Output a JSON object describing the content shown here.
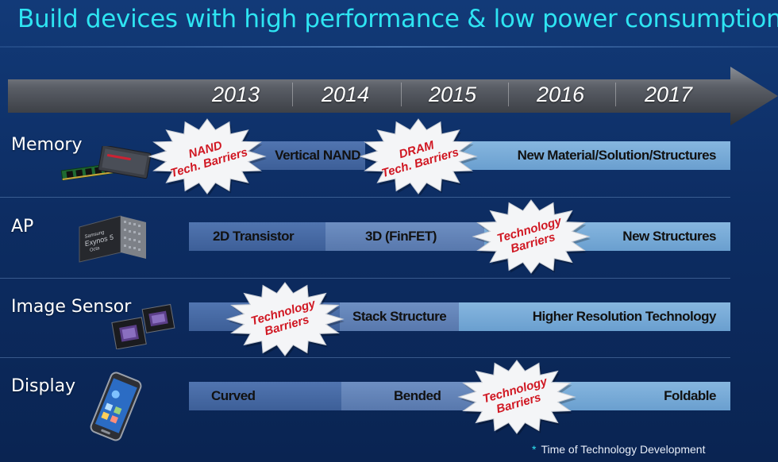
{
  "title": "Build devices with high performance & low power consumption",
  "timeline": {
    "years": [
      "2013",
      "2014",
      "2015",
      "2016",
      "2017"
    ]
  },
  "rows": {
    "memory": {
      "label": "Memory",
      "segments": [
        "Vertical NAND",
        "New Material/Solution/Structures"
      ],
      "barriers": [
        {
          "line1": "NAND",
          "line2": "Tech. Barriers"
        },
        {
          "line1": "DRAM",
          "line2": "Tech. Barriers"
        }
      ]
    },
    "ap": {
      "label": "AP",
      "segments": [
        "2D Transistor",
        "3D (FinFET)",
        "New Structures"
      ],
      "barriers": [
        {
          "line1": "Technology",
          "line2": "Barriers"
        }
      ],
      "chip_text": {
        "brand": "Samsung",
        "name": "Exynos 5",
        "line3": "Octa"
      }
    },
    "image_sensor": {
      "label": "Image Sensor",
      "segments": [
        "Stack Structure",
        "Higher Resolution Technology"
      ],
      "barriers": [
        {
          "line1": "Technology",
          "line2": "Barriers"
        }
      ]
    },
    "display": {
      "label": "Display",
      "segments": [
        "Curved",
        "Bended",
        "Foldable"
      ],
      "barriers": [
        {
          "line1": "Technology",
          "line2": "Barriers"
        }
      ]
    }
  },
  "footnote": {
    "star": "*",
    "text": "Time of Technology Development"
  },
  "colors": {
    "title": "#2ee4f2",
    "barrier_text": "#d01722",
    "band_dark": "#3d5f98",
    "band_mid": "#5878ad",
    "band_light": "#6a9fcf"
  }
}
